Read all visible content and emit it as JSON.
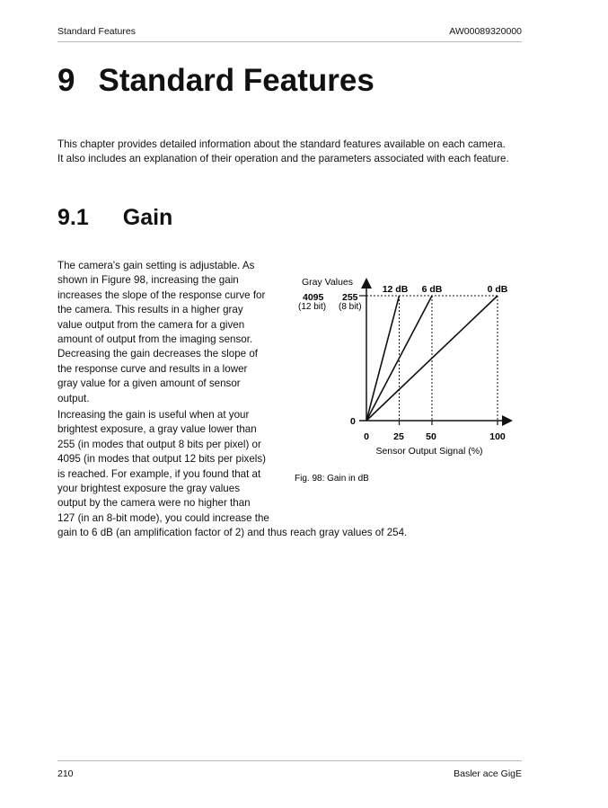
{
  "header": {
    "left": "Standard Features",
    "right": "AW00089320000"
  },
  "chapter": {
    "number": "9",
    "title": "Standard Features"
  },
  "intro": [
    "This chapter provides detailed information about the standard features available on each camera.",
    "It also includes an explanation of their operation and the parameters associated with each feature."
  ],
  "section": {
    "number": "9.1",
    "title": "Gain"
  },
  "para1": [
    "The camera's gain setting is adjustable. As",
    "shown in Figure 98, increasing the gain",
    "increases the slope of the response curve for",
    "the camera. This results in a higher gray",
    "value output from the camera for a given",
    "amount of output from the imaging sensor.",
    "Decreasing the gain decreases the slope of",
    "the response curve and results in a lower",
    "gray value for a given amount of sensor",
    "output."
  ],
  "para2": [
    "Increasing the gain is useful when at your",
    "brightest exposure, a gray value lower than",
    "255 (in modes that output 8 bits per pixel) or",
    "4095 (in modes that output 12 bits per pixels)",
    "is reached. For example, if you found that at",
    "your brightest exposure the gray values",
    "output by the camera were no higher than",
    "127 (in an 8-bit mode), you could increase the",
    "gain to 6 dB (an amplification factor of 2) and thus reach gray values of 254."
  ],
  "figure": {
    "y_title": "Gray Values",
    "y_max_12bit": "4095",
    "y_max_12bit_note": "(12 bit)",
    "y_max_8bit": "255",
    "y_max_8bit_note": "(8 bit)",
    "y_zero": "0",
    "x_ticks": [
      "0",
      "25",
      "50",
      "100"
    ],
    "x_label": "Sensor Output Signal (%)",
    "curves": [
      {
        "label": "12 dB",
        "saturation_x": 25
      },
      {
        "label": "6 dB",
        "saturation_x": 50
      },
      {
        "label": "0 dB",
        "saturation_x": 100
      }
    ],
    "caption": "Fig. 98: Gain in dB"
  },
  "footer": {
    "left": "210",
    "right": "Basler ace GigE"
  }
}
